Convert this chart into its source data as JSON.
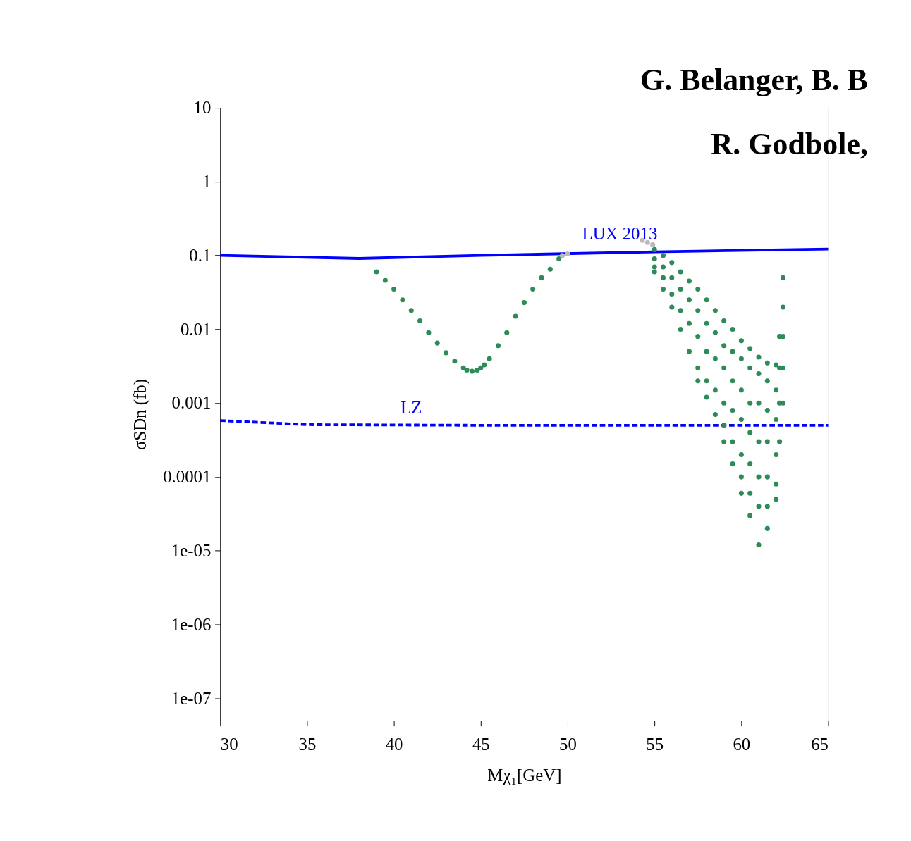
{
  "chart_data": {
    "type": "scatter",
    "xlabel": "Mχ₁[GeV]",
    "ylabel": "σSDn (fb)",
    "log": "y",
    "xlim": [
      30,
      65
    ],
    "xticks": [
      30,
      35,
      40,
      45,
      50,
      55,
      60,
      65
    ],
    "ylim": [
      5e-08,
      10
    ],
    "yticks": [
      10,
      1,
      0.1,
      0.01,
      0.001,
      0.0001,
      {
        "value": 1e-05,
        "label": "1e-05"
      },
      {
        "value": 1e-06,
        "label": "1e-06"
      },
      {
        "value": 1e-07,
        "label": "1e-07"
      }
    ],
    "grid": false,
    "series": [
      {
        "type": "line",
        "color": "#0000ff",
        "line_style": "solid",
        "x": [
          30,
          38,
          45,
          55,
          65
        ],
        "values": [
          0.1,
          0.091,
          0.1,
          0.112,
          0.122
        ]
      },
      {
        "type": "line",
        "color": "#0000ff",
        "line_style": "dashed",
        "x": [
          30,
          35,
          45,
          55,
          65
        ],
        "values": [
          0.00058,
          0.00051,
          0.0005,
          0.0005,
          0.0005
        ]
      },
      {
        "marker": "circle",
        "color": "#2e8b57",
        "x": [
          39,
          39.5,
          40,
          40.5,
          41,
          41.5,
          42,
          42.5,
          43,
          43.5,
          44,
          44.2,
          44.5,
          44.8,
          45,
          45.2,
          45.5,
          46,
          46.5,
          47,
          47.5,
          48,
          48.5,
          49,
          49.5
        ],
        "values": [
          0.06,
          0.046,
          0.035,
          0.025,
          0.018,
          0.013,
          0.009,
          0.0065,
          0.0048,
          0.0037,
          0.003,
          0.0028,
          0.0027,
          0.0028,
          0.003,
          0.0033,
          0.004,
          0.006,
          0.009,
          0.015,
          0.023,
          0.035,
          0.05,
          0.065,
          0.09
        ]
      },
      {
        "marker": "circle",
        "color": "#bbbbbb",
        "x": [
          49.7,
          50,
          54.3,
          54.6,
          54.9
        ],
        "values": [
          0.1,
          0.105,
          0.16,
          0.15,
          0.14
        ]
      },
      {
        "marker": "circle",
        "color": "#2e8b57",
        "x": [
          55,
          55,
          55,
          55,
          55.5,
          55.5,
          55.5,
          55.5,
          56,
          56,
          56,
          56,
          56.5,
          56.5,
          56.5,
          56.5,
          57,
          57,
          57,
          57,
          57.5,
          57.5,
          57.5,
          57.5,
          57.5,
          58,
          58,
          58,
          58,
          58,
          58.5,
          58.5,
          58.5,
          58.5,
          58.5,
          59,
          59,
          59,
          59,
          59,
          59,
          59.5,
          59.5,
          59.5,
          59.5,
          59.5,
          59.5,
          60,
          60,
          60,
          60,
          60,
          60,
          60,
          60.5,
          60.5,
          60.5,
          60.5,
          60.5,
          60.5,
          60.5,
          61,
          61,
          61,
          61,
          61,
          61,
          61,
          61.5,
          61.5,
          61.5,
          61.5,
          61.5,
          61.5,
          61.5,
          62,
          62,
          62,
          62,
          62,
          62,
          62.2,
          62.2,
          62.2,
          62.2,
          62.4,
          62.4,
          62.4,
          62.4,
          62.4
        ],
        "values": [
          0.12,
          0.09,
          0.07,
          0.06,
          0.1,
          0.07,
          0.05,
          0.035,
          0.08,
          0.05,
          0.03,
          0.02,
          0.06,
          0.035,
          0.018,
          0.01,
          0.045,
          0.025,
          0.012,
          0.005,
          0.035,
          0.018,
          0.008,
          0.003,
          0.002,
          0.025,
          0.012,
          0.005,
          0.002,
          0.0012,
          0.018,
          0.009,
          0.004,
          0.0015,
          0.0007,
          0.013,
          0.006,
          0.003,
          0.001,
          0.0005,
          0.0003,
          0.01,
          0.005,
          0.002,
          0.0008,
          0.0003,
          0.00015,
          0.007,
          0.004,
          0.0015,
          0.0006,
          0.0002,
          0.0001,
          6e-05,
          0.0055,
          0.003,
          0.001,
          0.0004,
          0.00015,
          6e-05,
          3e-05,
          0.0042,
          0.0025,
          0.001,
          0.0003,
          0.0001,
          4e-05,
          1.2e-05,
          0.0035,
          0.002,
          0.0008,
          0.0003,
          0.0001,
          4e-05,
          2e-05,
          0.0033,
          0.0015,
          0.0006,
          0.0002,
          8e-05,
          5e-05,
          0.008,
          0.003,
          0.001,
          0.0003,
          0.05,
          0.02,
          0.008,
          0.003,
          0.001
        ]
      }
    ],
    "annotations": [
      {
        "text": "LUX 2013",
        "x": 53,
        "y": 0.112
      },
      {
        "text": "LZ",
        "x": 41,
        "y": 0.0005
      },
      "G. Belanger, B. B",
      "R. Godbole,"
    ]
  }
}
